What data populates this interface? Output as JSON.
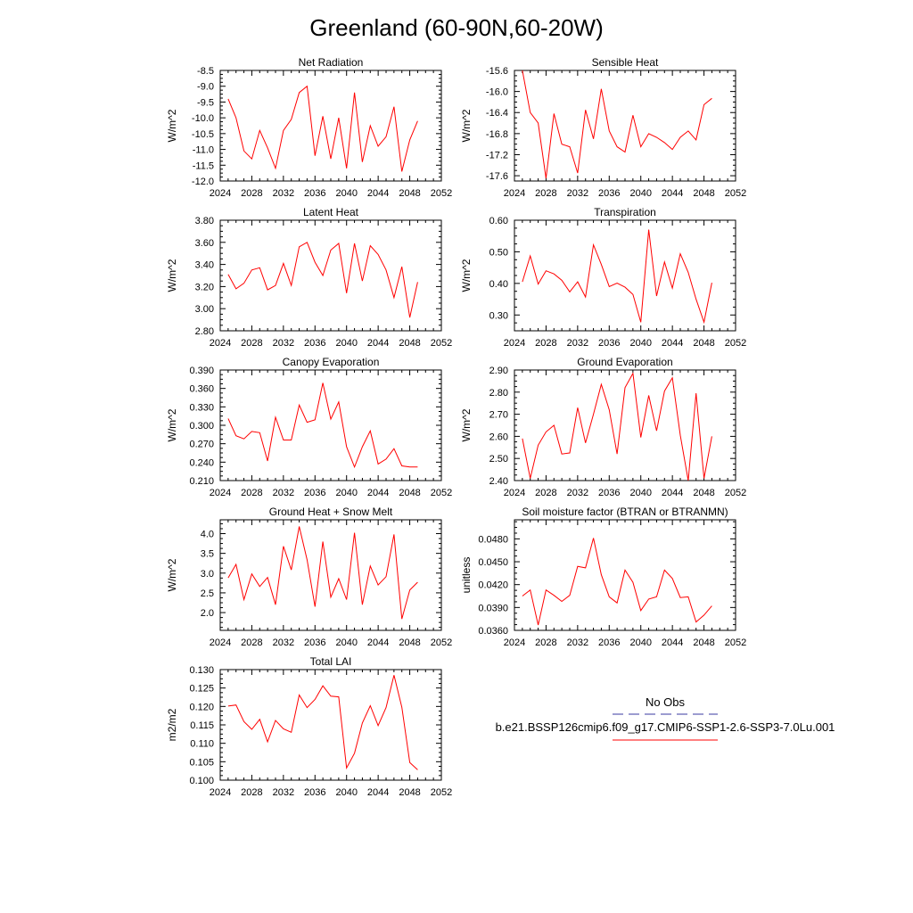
{
  "figure": {
    "title": "Greenland (60-90N,60-20W)",
    "legend": {
      "obs_label": "No Obs",
      "obs_color": "#3a3aa0",
      "model_label": "b.e21.BSSP126cmip6.f09_g17.CMIP6-SSP1-2.6-SSP3-7.0Lu.001",
      "model_color": "#ff0000"
    }
  },
  "chart_data": [
    {
      "type": "line",
      "title": "Net Radiation",
      "ylabel": "W/m^2",
      "xlim": [
        2024,
        2052
      ],
      "xticks": [
        2024,
        2028,
        2032,
        2036,
        2040,
        2044,
        2048,
        2052
      ],
      "ylim": [
        -12.0,
        -8.5
      ],
      "yticks": [
        "-12.0",
        "-11.5",
        "-11.0",
        "-10.5",
        "-10.0",
        "-9.5",
        "-9.0",
        "-8.5"
      ],
      "series": [
        {
          "x": [
            2025,
            2026,
            2027,
            2028,
            2029,
            2030,
            2031,
            2032,
            2033,
            2034,
            2035,
            2036,
            2037,
            2038,
            2039,
            2040,
            2041,
            2042,
            2043,
            2044,
            2045,
            2046,
            2047,
            2048,
            2049
          ],
          "y": [
            -9.4,
            -10.0,
            -11.05,
            -11.3,
            -10.4,
            -10.95,
            -11.6,
            -10.4,
            -10.05,
            -9.2,
            -9.0,
            -11.2,
            -9.95,
            -11.3,
            -10.0,
            -11.6,
            -9.2,
            -11.4,
            -10.25,
            -10.9,
            -10.6,
            -9.65,
            -11.7,
            -10.7,
            -10.1
          ]
        }
      ]
    },
    {
      "type": "line",
      "title": "Sensible Heat",
      "ylabel": "W/m^2",
      "xlim": [
        2024,
        2052
      ],
      "xticks": [
        2024,
        2028,
        2032,
        2036,
        2040,
        2044,
        2048,
        2052
      ],
      "ylim": [
        -17.7,
        -15.6
      ],
      "yticks": [
        "-17.6",
        "-17.2",
        "-16.8",
        "-16.4",
        "-16.0",
        "-15.6"
      ],
      "series": [
        {
          "x": [
            2025,
            2026,
            2027,
            2028,
            2029,
            2030,
            2031,
            2032,
            2033,
            2034,
            2035,
            2036,
            2037,
            2038,
            2039,
            2040,
            2041,
            2042,
            2043,
            2044,
            2045,
            2046,
            2047,
            2048,
            2049
          ],
          "y": [
            -15.6,
            -16.4,
            -16.6,
            -17.65,
            -16.42,
            -17.0,
            -17.05,
            -17.55,
            -16.35,
            -16.9,
            -15.95,
            -16.75,
            -17.05,
            -17.15,
            -16.45,
            -17.05,
            -16.8,
            -16.87,
            -16.97,
            -17.1,
            -16.87,
            -16.75,
            -16.92,
            -16.25,
            -16.13
          ]
        }
      ]
    },
    {
      "type": "line",
      "title": "Latent Heat",
      "ylabel": "W/m^2",
      "xlim": [
        2024,
        2052
      ],
      "xticks": [
        2024,
        2028,
        2032,
        2036,
        2040,
        2044,
        2048,
        2052
      ],
      "ylim": [
        2.8,
        3.8
      ],
      "yticks": [
        "2.80",
        "3.00",
        "3.20",
        "3.40",
        "3.60",
        "3.80"
      ],
      "series": [
        {
          "x": [
            2025,
            2026,
            2027,
            2028,
            2029,
            2030,
            2031,
            2032,
            2033,
            2034,
            2035,
            2036,
            2037,
            2038,
            2039,
            2040,
            2041,
            2042,
            2043,
            2044,
            2045,
            2046,
            2047,
            2048,
            2049
          ],
          "y": [
            3.31,
            3.18,
            3.23,
            3.35,
            3.37,
            3.17,
            3.21,
            3.41,
            3.21,
            3.56,
            3.6,
            3.42,
            3.3,
            3.53,
            3.59,
            3.14,
            3.59,
            3.25,
            3.57,
            3.49,
            3.35,
            3.1,
            3.38,
            2.92,
            3.24
          ]
        }
      ]
    },
    {
      "type": "line",
      "title": "Transpiration",
      "ylabel": "W/m^2",
      "xlim": [
        2024,
        2052
      ],
      "xticks": [
        2024,
        2028,
        2032,
        2036,
        2040,
        2044,
        2048,
        2052
      ],
      "ylim": [
        0.25,
        0.6
      ],
      "yticks": [
        "0.30",
        "0.40",
        "0.50",
        "0.60"
      ],
      "series": [
        {
          "x": [
            2025,
            2026,
            2027,
            2028,
            2029,
            2030,
            2031,
            2032,
            2033,
            2034,
            2035,
            2036,
            2037,
            2038,
            2039,
            2040,
            2041,
            2042,
            2043,
            2044,
            2045,
            2046,
            2047,
            2048,
            2049
          ],
          "y": [
            0.405,
            0.487,
            0.398,
            0.44,
            0.43,
            0.41,
            0.373,
            0.405,
            0.357,
            0.522,
            0.46,
            0.39,
            0.401,
            0.388,
            0.365,
            0.277,
            0.57,
            0.36,
            0.468,
            0.385,
            0.494,
            0.435,
            0.35,
            0.277,
            0.402
          ]
        }
      ]
    },
    {
      "type": "line",
      "title": "Canopy Evaporation",
      "ylabel": "W/m^2",
      "xlim": [
        2024,
        2052
      ],
      "xticks": [
        2024,
        2028,
        2032,
        2036,
        2040,
        2044,
        2048,
        2052
      ],
      "ylim": [
        0.21,
        0.39
      ],
      "yticks": [
        "0.210",
        "0.240",
        "0.270",
        "0.300",
        "0.330",
        "0.360",
        "0.390"
      ],
      "series": [
        {
          "x": [
            2025,
            2026,
            2027,
            2028,
            2029,
            2030,
            2031,
            2032,
            2033,
            2034,
            2035,
            2036,
            2037,
            2038,
            2039,
            2040,
            2041,
            2042,
            2043,
            2044,
            2045,
            2046,
            2047,
            2048,
            2049
          ],
          "y": [
            0.311,
            0.283,
            0.278,
            0.29,
            0.288,
            0.242,
            0.313,
            0.276,
            0.276,
            0.333,
            0.305,
            0.309,
            0.369,
            0.31,
            0.338,
            0.265,
            0.232,
            0.265,
            0.291,
            0.237,
            0.245,
            0.262,
            0.234,
            0.232,
            0.232
          ]
        }
      ]
    },
    {
      "type": "line",
      "title": "Ground Evaporation",
      "ylabel": "W/m^2",
      "xlim": [
        2024,
        2052
      ],
      "xticks": [
        2024,
        2028,
        2032,
        2036,
        2040,
        2044,
        2048,
        2052
      ],
      "ylim": [
        2.4,
        2.9
      ],
      "yticks": [
        "2.40",
        "2.50",
        "2.60",
        "2.70",
        "2.80",
        "2.90"
      ],
      "series": [
        {
          "x": [
            2025,
            2026,
            2027,
            2028,
            2029,
            2030,
            2031,
            2032,
            2033,
            2034,
            2035,
            2036,
            2037,
            2038,
            2039,
            2040,
            2041,
            2042,
            2043,
            2044,
            2045,
            2046,
            2047,
            2048,
            2049
          ],
          "y": [
            2.59,
            2.41,
            2.56,
            2.62,
            2.65,
            2.52,
            2.525,
            2.73,
            2.57,
            2.7,
            2.835,
            2.72,
            2.52,
            2.82,
            2.885,
            2.595,
            2.785,
            2.625,
            2.805,
            2.865,
            2.605,
            2.4,
            2.795,
            2.41,
            2.6
          ]
        }
      ]
    },
    {
      "type": "line",
      "title": "Ground Heat + Snow Melt",
      "ylabel": "W/m^2",
      "xlim": [
        2024,
        2052
      ],
      "xticks": [
        2024,
        2028,
        2032,
        2036,
        2040,
        2044,
        2048,
        2052
      ],
      "ylim": [
        1.55,
        4.35
      ],
      "yticks": [
        "2.0",
        "2.5",
        "3.0",
        "3.5",
        "4.0"
      ],
      "series": [
        {
          "x": [
            2025,
            2026,
            2027,
            2028,
            2029,
            2030,
            2031,
            2032,
            2033,
            2034,
            2035,
            2036,
            2037,
            2038,
            2039,
            2040,
            2041,
            2042,
            2043,
            2044,
            2045,
            2046,
            2047,
            2048,
            2049
          ],
          "y": [
            2.88,
            3.22,
            2.33,
            2.98,
            2.66,
            2.89,
            2.2,
            3.68,
            3.08,
            4.18,
            3.34,
            2.15,
            3.8,
            2.39,
            2.86,
            2.33,
            4.02,
            2.2,
            3.18,
            2.7,
            2.91,
            3.98,
            1.84,
            2.57,
            2.77
          ]
        }
      ]
    },
    {
      "type": "line",
      "title": "Soil moisture factor (BTRAN or BTRANMN)",
      "ylabel": "unitless",
      "xlim": [
        2024,
        2052
      ],
      "xticks": [
        2024,
        2028,
        2032,
        2036,
        2040,
        2044,
        2048,
        2052
      ],
      "ylim": [
        0.036,
        0.0505
      ],
      "yticks": [
        "0.0360",
        "0.0390",
        "0.0420",
        "0.0450",
        "0.0480"
      ],
      "series": [
        {
          "x": [
            2025,
            2026,
            2027,
            2028,
            2029,
            2030,
            2031,
            2032,
            2033,
            2034,
            2035,
            2036,
            2037,
            2038,
            2039,
            2040,
            2041,
            2042,
            2043,
            2044,
            2045,
            2046,
            2047,
            2048,
            2049
          ],
          "y": [
            0.0405,
            0.0413,
            0.0367,
            0.0413,
            0.0406,
            0.0398,
            0.0406,
            0.0444,
            0.0442,
            0.0481,
            0.0433,
            0.0404,
            0.0396,
            0.0439,
            0.0423,
            0.0386,
            0.0401,
            0.0404,
            0.0439,
            0.0428,
            0.0403,
            0.0404,
            0.0371,
            0.038,
            0.0392
          ]
        }
      ]
    },
    {
      "type": "line",
      "title": "Total LAI",
      "ylabel": "m2/m2",
      "xlim": [
        2024,
        2052
      ],
      "xticks": [
        2024,
        2028,
        2032,
        2036,
        2040,
        2044,
        2048,
        2052
      ],
      "ylim": [
        0.1,
        0.13
      ],
      "yticks": [
        "0.100",
        "0.105",
        "0.110",
        "0.115",
        "0.120",
        "0.125",
        "0.130"
      ],
      "series": [
        {
          "x": [
            2025,
            2026,
            2027,
            2028,
            2029,
            2030,
            2031,
            2032,
            2033,
            2034,
            2035,
            2036,
            2037,
            2038,
            2039,
            2040,
            2041,
            2042,
            2043,
            2044,
            2045,
            2046,
            2047,
            2048,
            2049
          ],
          "y": [
            0.1201,
            0.1204,
            0.1159,
            0.1138,
            0.1165,
            0.1104,
            0.1162,
            0.1139,
            0.113,
            0.1231,
            0.1197,
            0.1219,
            0.1256,
            0.1228,
            0.1226,
            0.1033,
            0.1073,
            0.1155,
            0.1202,
            0.1148,
            0.1197,
            0.1285,
            0.1198,
            0.1048,
            0.1028
          ]
        }
      ]
    }
  ]
}
